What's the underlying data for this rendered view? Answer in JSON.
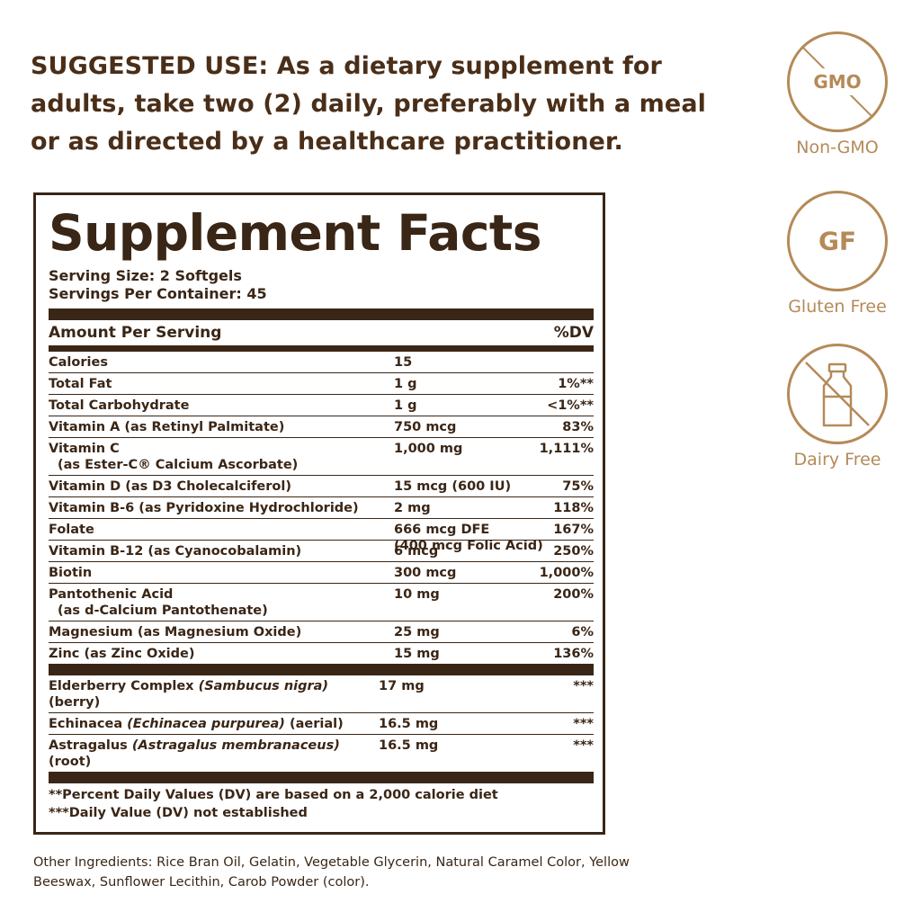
{
  "suggested_use": "SUGGESTED USE: As a dietary supplement for adults, take two (2) daily, preferably with a meal or as directed by a healthcare practitioner.",
  "facts": {
    "title": "Supplement Facts",
    "serving_size": "Serving Size: 2 Softgels",
    "servings_per_container": "Servings Per Container: 45",
    "amount_per_serving": "Amount Per Serving",
    "dv_header": "%DV",
    "rows": [
      {
        "name": "Calories",
        "sub": "",
        "amount": "15",
        "amount2": "",
        "dv": ""
      },
      {
        "name": "Total Fat",
        "sub": "",
        "amount": "1 g",
        "amount2": "",
        "dv": "1%**"
      },
      {
        "name": "Total Carbohydrate",
        "sub": "",
        "amount": "1 g",
        "amount2": "",
        "dv": "<1%**"
      },
      {
        "name": "Vitamin A (as Retinyl Palmitate)",
        "sub": "",
        "amount": "750 mcg",
        "amount2": "",
        "dv": "83%"
      },
      {
        "name": "Vitamin C",
        "sub": "(as Ester-C® Calcium Ascorbate)",
        "amount": "1,000 mg",
        "amount2": "",
        "dv": "1,111%"
      },
      {
        "name": "Vitamin D (as D3 Cholecalciferol)",
        "sub": "",
        "amount": "15 mcg (600 IU)",
        "amount2": "",
        "dv": "75%"
      },
      {
        "name": "Vitamin B-6 (as Pyridoxine Hydrochloride)",
        "sub": "",
        "amount": "2 mg",
        "amount2": "",
        "dv": "118%"
      },
      {
        "name": "Folate",
        "sub": "",
        "amount": "666 mcg DFE",
        "amount2": "(400 mcg Folic Acid)",
        "dv": "167%"
      },
      {
        "name": "Vitamin B-12 (as Cyanocobalamin)",
        "sub": "",
        "amount": "6 mcg",
        "amount2": "",
        "dv": "250%"
      },
      {
        "name": "Biotin",
        "sub": "",
        "amount": "300 mcg",
        "amount2": "",
        "dv": "1,000%"
      },
      {
        "name": "Pantothenic Acid",
        "sub": "(as d-Calcium Pantothenate)",
        "amount": "10 mg",
        "amount2": "",
        "dv": "200%"
      },
      {
        "name": "Magnesium (as Magnesium Oxide)",
        "sub": "",
        "amount": "25 mg",
        "amount2": "",
        "dv": "6%"
      },
      {
        "name": "Zinc (as Zinc Oxide)",
        "sub": "",
        "amount": "15 mg",
        "amount2": "",
        "dv": "136%"
      }
    ],
    "herbs": [
      {
        "name": "Elderberry Complex ",
        "latin": "(Sambucus nigra)",
        "part": " (berry)",
        "amount": "17 mg",
        "dv": "***"
      },
      {
        "name": "Echinacea ",
        "latin": "(Echinacea purpurea)",
        "part": " (aerial)",
        "amount": "16.5 mg",
        "dv": "***"
      },
      {
        "name": "Astragalus ",
        "latin": "(Astragalus membranaceus)",
        "part": " (root)",
        "amount": "16.5 mg",
        "dv": "***"
      }
    ],
    "footnote1": "**Percent Daily Values (DV) are based on a 2,000 calorie diet",
    "footnote2": "***Daily Value (DV) not established"
  },
  "other_ingredients": "Other Ingredients: Rice Bran Oil, Gelatin, Vegetable Glycerin, Natural Caramel Color, Yellow Beeswax, Sunflower Lecithin, Carob Powder (color).",
  "badges": {
    "gmo": {
      "code": "GMO",
      "label": "Non-GMO",
      "icon": "no-gmo-icon"
    },
    "gf": {
      "code": "GF",
      "label": "Gluten Free",
      "icon": "gluten-free-icon"
    },
    "dairy": {
      "label": "Dairy Free",
      "icon": "no-milk-bottle-icon"
    }
  },
  "colors": {
    "text": "#3a2616",
    "accent": "#b58a58"
  }
}
